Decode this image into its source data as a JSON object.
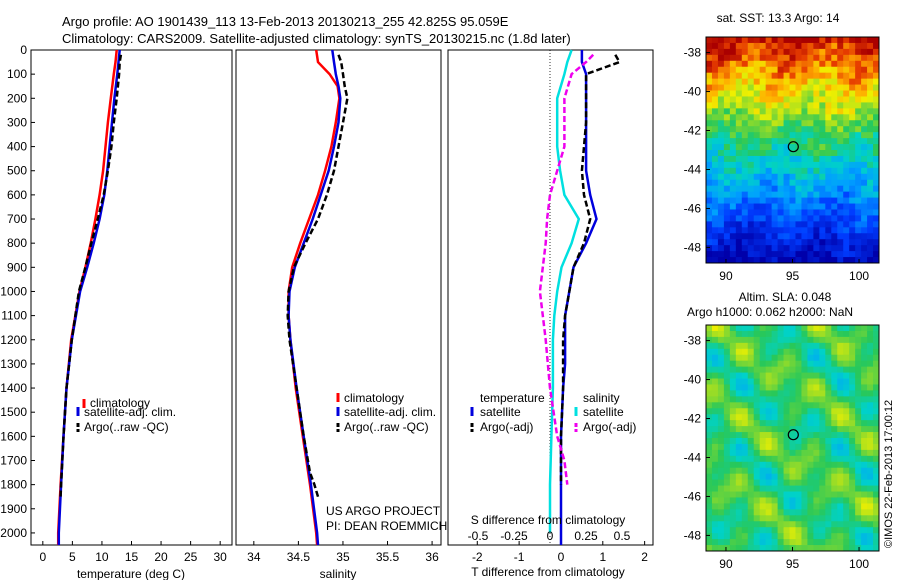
{
  "header": {
    "line1": "Argo profile: AO 1901439_113 13-Feb-2013 20130213_255 42.825S 95.059E",
    "line2": "Climatology: CARS2009. Satellite-adjusted climatology: synTS_20130215.nc (1.8d later)"
  },
  "colors": {
    "climatology": "#ff0000",
    "satellite": "#0000dd",
    "argo": "#000000",
    "cyan": "#00e0e0",
    "magenta": "#ee00ee"
  },
  "depth_ticks": [
    "0",
    "100",
    "200",
    "300",
    "400",
    "500",
    "600",
    "700",
    "800",
    "900",
    "1000",
    "1100",
    "1200",
    "1300",
    "1400",
    "1500",
    "1600",
    "1700",
    "1800",
    "1900",
    "2000"
  ],
  "chart_data": [
    {
      "type": "line",
      "name": "temperature",
      "xlabel": "temperature (deg C)",
      "xticks": [
        "0",
        "5",
        "10",
        "15",
        "20",
        "25",
        "30"
      ],
      "xlim": [
        -2,
        32
      ],
      "ylim": [
        0,
        2050
      ],
      "legend": [
        "climatology",
        "satellite-adj. clim.",
        "Argo(..raw -QC)"
      ],
      "series": [
        {
          "name": "climatology",
          "depth": [
            0,
            50,
            100,
            200,
            300,
            400,
            500,
            600,
            700,
            800,
            900,
            1000,
            1200,
            1400,
            1600,
            1800,
            2000,
            2050
          ],
          "values": [
            12.5,
            12.3,
            12.0,
            11.5,
            11.0,
            10.6,
            10.2,
            9.6,
            8.9,
            8.1,
            7.2,
            6.2,
            4.8,
            4.0,
            3.5,
            3.0,
            2.6,
            2.6
          ]
        },
        {
          "name": "satellite-adj. clim.",
          "depth": [
            0,
            50,
            100,
            200,
            300,
            400,
            500,
            600,
            700,
            800,
            900,
            1000,
            1200,
            1400,
            1600,
            1800,
            2000,
            2050
          ],
          "values": [
            13.0,
            12.8,
            12.6,
            12.1,
            11.7,
            11.3,
            10.9,
            10.4,
            9.6,
            8.6,
            7.5,
            6.3,
            4.9,
            4.0,
            3.5,
            3.1,
            2.7,
            2.7
          ]
        },
        {
          "name": "Argo(..raw -QC)",
          "depth": [
            20,
            50,
            100,
            200,
            300,
            400,
            500,
            600,
            700,
            800,
            900,
            1000,
            1200,
            1400,
            1600,
            1800,
            1850
          ],
          "values": [
            13.2,
            13.0,
            12.9,
            12.5,
            12.0,
            11.6,
            11.0,
            10.3,
            9.3,
            8.2,
            7.2,
            6.1,
            4.9,
            4.0,
            3.5,
            3.1,
            3.0
          ]
        }
      ]
    },
    {
      "type": "line",
      "name": "salinity",
      "xlabel": "salinity",
      "xticks": [
        "34",
        "34.5",
        "35",
        "35.5",
        "36"
      ],
      "xlim": [
        33.8,
        36.1
      ],
      "ylim": [
        0,
        2050
      ],
      "legend": [
        "climatology",
        "satellite-adj. clim.",
        "Argo(..raw -QC)"
      ],
      "series": [
        {
          "name": "climatology",
          "depth": [
            0,
            50,
            100,
            150,
            200,
            300,
            400,
            500,
            600,
            700,
            800,
            900,
            1000,
            1100,
            1200,
            1400,
            1600,
            1800,
            2000,
            2050
          ],
          "values": [
            34.7,
            34.72,
            34.85,
            34.94,
            34.96,
            34.92,
            34.87,
            34.8,
            34.72,
            34.62,
            34.52,
            34.43,
            34.39,
            34.39,
            34.41,
            34.47,
            34.55,
            34.63,
            34.7,
            34.71
          ]
        },
        {
          "name": "satellite-adj. clim.",
          "depth": [
            0,
            50,
            100,
            150,
            200,
            300,
            400,
            500,
            600,
            700,
            800,
            900,
            1000,
            1100,
            1200,
            1400,
            1600,
            1800,
            2000,
            2050
          ],
          "values": [
            34.88,
            34.9,
            34.92,
            34.95,
            34.97,
            34.95,
            34.9,
            34.84,
            34.75,
            34.66,
            34.56,
            34.46,
            34.4,
            34.39,
            34.41,
            34.48,
            34.56,
            34.64,
            34.71,
            34.72
          ]
        },
        {
          "name": "Argo(..raw -QC)",
          "depth": [
            20,
            50,
            100,
            150,
            200,
            300,
            400,
            500,
            600,
            700,
            800,
            900,
            1000,
            1100,
            1200,
            1400,
            1600,
            1750,
            1800,
            1850
          ],
          "values": [
            34.95,
            34.98,
            35.0,
            35.02,
            35.05,
            35.0,
            34.95,
            34.9,
            34.82,
            34.72,
            34.58,
            34.45,
            34.39,
            34.38,
            34.4,
            34.48,
            34.56,
            34.63,
            34.68,
            34.72
          ]
        }
      ]
    },
    {
      "type": "line",
      "name": "difference",
      "xlabel": "T difference from climatology",
      "xticks": [
        "-2",
        "-1",
        "0",
        "1",
        "2"
      ],
      "xlim": [
        -2.7,
        2.2
      ],
      "s_xlabel": "S difference from climatology",
      "s_xticks": [
        "-0.5",
        "-0.25",
        "0",
        "0.25",
        "0.5"
      ],
      "ylim": [
        0,
        2050
      ],
      "legend_temperature_title": "temperature",
      "legend_salinity_title": "salinity",
      "legend": [
        "satellite",
        "Argo(-adj)",
        "satellite",
        "Argo(-adj)"
      ],
      "series": [
        {
          "name": "temperature satellite",
          "depth": [
            0,
            50,
            100,
            200,
            300,
            400,
            500,
            600,
            700,
            800,
            900,
            1000,
            1100,
            1200,
            1300,
            1400,
            1600,
            1800,
            1900,
            2000,
            2050
          ],
          "values": [
            0.5,
            0.5,
            0.6,
            0.6,
            0.6,
            0.6,
            0.6,
            0.7,
            0.85,
            0.6,
            0.3,
            0.2,
            0.1,
            0.1,
            0.1,
            0.05,
            0.0,
            0.0,
            0.0,
            0.0,
            0.0
          ]
        },
        {
          "name": "temperature Argo(-adj)",
          "depth": [
            20,
            50,
            100,
            200,
            300,
            400,
            500,
            600,
            700,
            800,
            900,
            1000,
            1100,
            1200,
            1400,
            1600,
            1800
          ],
          "values": [
            1.3,
            1.4,
            0.6,
            0.6,
            0.6,
            0.55,
            0.5,
            0.55,
            0.7,
            0.55,
            0.3,
            0.2,
            0.1,
            0.05,
            0.05,
            0.0,
            0.0
          ]
        },
        {
          "name": "salinity satellite",
          "depth": [
            0,
            50,
            100,
            200,
            300,
            400,
            500,
            600,
            700,
            800,
            900,
            1000,
            1100,
            1200,
            1400,
            1600,
            1800,
            1900,
            2000
          ],
          "values": [
            0.15,
            0.12,
            0.1,
            0.05,
            0.05,
            0.05,
            0.07,
            0.1,
            0.2,
            0.15,
            0.08,
            0.05,
            0.03,
            0.02,
            0.02,
            0.01,
            0.0,
            0.0,
            0.0
          ]
        },
        {
          "name": "salinity Argo(-adj)",
          "depth": [
            20,
            50,
            100,
            200,
            300,
            400,
            500,
            600,
            700,
            800,
            900,
            1000,
            1100,
            1200,
            1400,
            1600,
            1700,
            1800
          ],
          "values": [
            0.3,
            0.25,
            0.15,
            0.1,
            0.1,
            0.1,
            0.05,
            0.0,
            -0.02,
            -0.03,
            -0.05,
            -0.07,
            -0.05,
            -0.03,
            0.0,
            0.05,
            0.1,
            0.12
          ]
        }
      ]
    },
    {
      "type": "heatmap",
      "name": "sst-map",
      "title": "sat. SST: 13.3 Argo: 14",
      "xticks": [
        "90",
        "95",
        "100"
      ],
      "yticks": [
        "-38",
        "-40",
        "-42",
        "-44",
        "-46",
        "-48"
      ],
      "xlim": [
        88.5,
        101.5
      ],
      "ylim": [
        -48.8,
        -37.2
      ],
      "marker": {
        "lon": 95.06,
        "lat": -42.83
      }
    },
    {
      "type": "heatmap",
      "name": "sla-map",
      "title1": "Altim. SLA: 0.048",
      "title2": "Argo h1000: 0.062 h2000: NaN",
      "xticks": [
        "90",
        "95",
        "100"
      ],
      "yticks": [
        "-38",
        "-40",
        "-42",
        "-44",
        "-46",
        "-48"
      ],
      "xlim": [
        88.5,
        101.5
      ],
      "ylim": [
        -48.8,
        -37.2
      ],
      "marker": {
        "lon": 95.06,
        "lat": -42.83
      }
    }
  ],
  "annotation": {
    "line1": "US ARGO PROJECT",
    "line2": "PI: DEAN ROEMMICH"
  },
  "imos_stamp": "©IMOS 22-Feb-2013 17:00:12"
}
